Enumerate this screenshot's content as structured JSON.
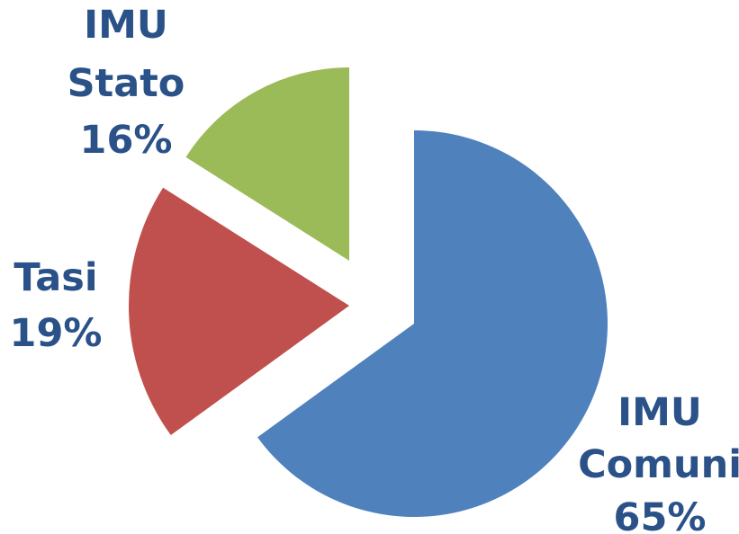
{
  "chart_data": {
    "type": "pie",
    "title": "",
    "legend": "none",
    "slices": [
      {
        "name": "IMU Comuni",
        "label_lines": [
          "IMU",
          "Comuni",
          "65%"
        ],
        "value": 65,
        "color": "#4f81bd"
      },
      {
        "name": "Tasi",
        "label_lines": [
          "Tasi",
          "19%"
        ],
        "value": 19,
        "color": "#c0504d"
      },
      {
        "name": "IMU Stato",
        "label_lines": [
          "IMU",
          "Stato",
          "16%"
        ],
        "value": 16,
        "color": "#9bbb59"
      }
    ]
  }
}
